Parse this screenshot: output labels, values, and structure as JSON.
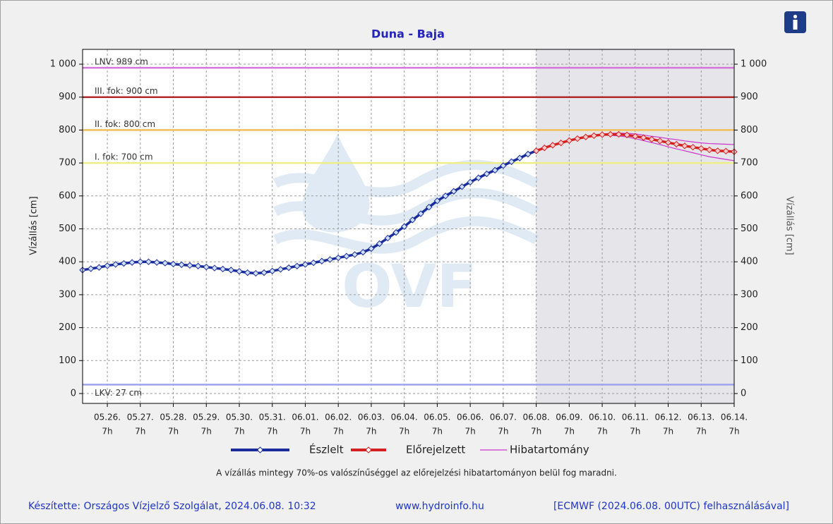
{
  "chart_data": {
    "type": "line",
    "title": "Duna - Baja",
    "ylabel": "Vízállás [cm]",
    "y2label": "Vízállás [cm]",
    "watermark": "OVF",
    "note": "A vízállás mintegy 70%-os valószínűséggel az előrejelzési hibatartományon belül fog maradni.",
    "footer_left": "Készítette: Országos Vízjelző Szolgálat, 2024.06.08. 10:32",
    "footer_center": "www.hydroinfo.hu",
    "footer_right": "[ECMWF (2024.06.08. 00UTC) felhasználásával]",
    "xlim": [
      "05.25. 13h",
      "06.14. 7h"
    ],
    "xticks": [
      "05.26.",
      "05.27.",
      "05.28.",
      "05.29.",
      "05.30.",
      "05.31.",
      "06.01.",
      "06.02.",
      "06.03.",
      "06.04.",
      "06.05.",
      "06.06.",
      "06.07.",
      "06.08.",
      "06.09.",
      "06.10.",
      "06.11.",
      "06.12.",
      "06.13.",
      "06.14."
    ],
    "xtick_time": "7h",
    "ylim": [
      -30,
      1045
    ],
    "yticks": [
      0,
      100,
      200,
      300,
      400,
      500,
      600,
      700,
      800,
      900,
      {
        "value": 1000,
        "label": "1 000"
      }
    ],
    "grid": true,
    "forecast_shade_from": "06.08. 7h",
    "thresholds": [
      {
        "label": "LNV: 989 cm",
        "value": 989,
        "color": "#d475dc"
      },
      {
        "label": "III. fok: 900 cm",
        "value": 900,
        "color": "#b02a2a"
      },
      {
        "label": "II. fok: 800 cm",
        "value": 800,
        "color": "#f2be5a"
      },
      {
        "label": "I. fok: 700 cm",
        "value": 700,
        "color": "#eeee88"
      },
      {
        "label": "LKV: 27 cm",
        "value": 27,
        "color": "#9ea4ec"
      }
    ],
    "series": [
      {
        "name": "Észlelt",
        "color": "#1a2c9c",
        "markers": true,
        "x": [
          "05.25. 13h",
          "05.25. 19h",
          "05.26. 1h",
          "05.26. 7h",
          "05.26. 13h",
          "05.26. 19h",
          "05.27. 1h",
          "05.27. 7h",
          "05.27. 13h",
          "05.27. 19h",
          "05.28. 1h",
          "05.28. 7h",
          "05.28. 13h",
          "05.28. 19h",
          "05.29. 1h",
          "05.29. 7h",
          "05.29. 13h",
          "05.29. 19h",
          "05.30. 1h",
          "05.30. 7h",
          "05.30. 13h",
          "05.30. 19h",
          "05.31. 1h",
          "05.31. 7h",
          "05.31. 13h",
          "05.31. 19h",
          "06.01. 1h",
          "06.01. 7h",
          "06.01. 13h",
          "06.01. 19h",
          "06.02. 1h",
          "06.02. 7h",
          "06.02. 13h",
          "06.02. 19h",
          "06.03. 1h",
          "06.03. 7h",
          "06.03. 13h",
          "06.03. 19h",
          "06.04. 1h",
          "06.04. 7h",
          "06.04. 13h",
          "06.04. 19h",
          "06.05. 1h",
          "06.05. 7h",
          "06.05. 13h",
          "06.05. 19h",
          "06.06. 1h",
          "06.06. 7h",
          "06.06. 13h",
          "06.06. 19h",
          "06.07. 1h",
          "06.07. 7h",
          "06.07. 13h",
          "06.07. 19h",
          "06.08. 1h",
          "06.08. 7h"
        ],
        "values": [
          375,
          379,
          383,
          388,
          392,
          395,
          398,
          400,
          400,
          398,
          396,
          393,
          391,
          389,
          387,
          384,
          381,
          378,
          375,
          371,
          367,
          365,
          367,
          372,
          377,
          382,
          387,
          392,
          397,
          402,
          407,
          412,
          417,
          422,
          429,
          440,
          455,
          472,
          489,
          507,
          527,
          546,
          566,
          585,
          600,
          614,
          628,
          642,
          655,
          667,
          678,
          692,
          704,
          715,
          727,
          737
        ]
      },
      {
        "name": "Előrejelzett",
        "color": "#d42020",
        "markers": true,
        "x": [
          "06.08. 7h",
          "06.08. 13h",
          "06.08. 19h",
          "06.09. 1h",
          "06.09. 7h",
          "06.09. 13h",
          "06.09. 19h",
          "06.10. 1h",
          "06.10. 7h",
          "06.10. 13h",
          "06.10. 19h",
          "06.11. 1h",
          "06.11. 7h",
          "06.11. 13h",
          "06.11. 19h",
          "06.12. 1h",
          "06.12. 7h",
          "06.12. 13h",
          "06.12. 19h",
          "06.13. 1h",
          "06.13. 7h",
          "06.13. 13h",
          "06.13. 19h",
          "06.14. 1h",
          "06.14. 7h"
        ],
        "values": [
          737,
          746,
          754,
          761,
          768,
          774,
          779,
          783,
          786,
          787,
          787,
          785,
          781,
          777,
          772,
          767,
          762,
          757,
          752,
          748,
          744,
          740,
          737,
          736,
          734
        ]
      },
      {
        "name": "Hibatartomány",
        "color": "#cc33cc",
        "markers": false,
        "x": [
          "06.08. 7h",
          "06.08. 13h",
          "06.08. 19h",
          "06.09. 1h",
          "06.09. 7h",
          "06.09. 13h",
          "06.09. 19h",
          "06.10. 1h",
          "06.10. 7h",
          "06.10. 13h",
          "06.10. 19h",
          "06.11. 1h",
          "06.11. 7h",
          "06.11. 13h",
          "06.11. 19h",
          "06.12. 1h",
          "06.12. 7h",
          "06.12. 13h",
          "06.12. 19h",
          "06.13. 1h",
          "06.13. 7h",
          "06.13. 13h",
          "06.13. 19h",
          "06.14. 1h",
          "06.14. 7h"
        ],
        "values": [
          737,
          746,
          754,
          761,
          768,
          774,
          779,
          783,
          788,
          790,
          791,
          790,
          788,
          785,
          781,
          778,
          774,
          771,
          767,
          764,
          761,
          759,
          758,
          757,
          756
        ],
        "lower": [
          737,
          746,
          754,
          761,
          768,
          774,
          779,
          783,
          784,
          784,
          782,
          779,
          774,
          768,
          762,
          756,
          749,
          743,
          737,
          731,
          725,
          719,
          715,
          711,
          707
        ]
      }
    ]
  }
}
